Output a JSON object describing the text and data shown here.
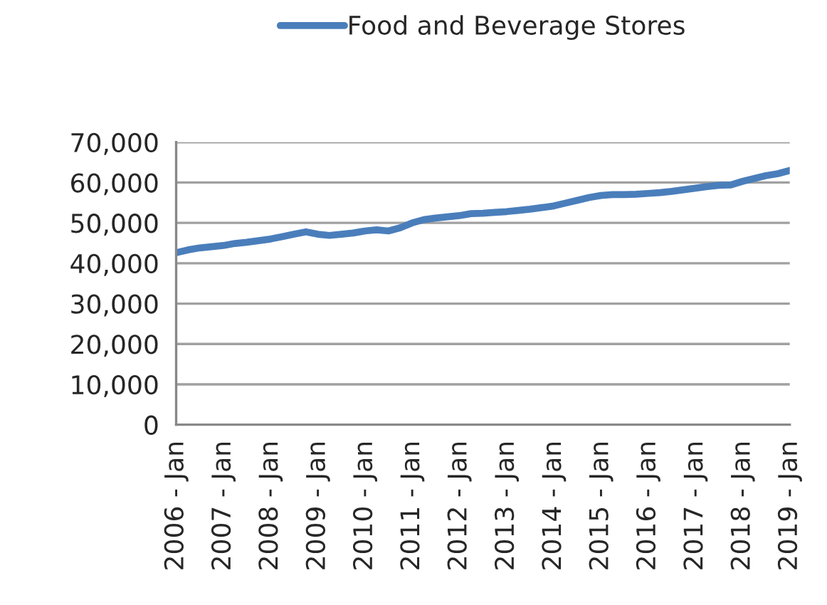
{
  "chart_data": {
    "type": "line",
    "x": [
      "2006-01",
      "2006-04",
      "2006-07",
      "2006-10",
      "2007-01",
      "2007-04",
      "2007-07",
      "2007-10",
      "2008-01",
      "2008-04",
      "2008-07",
      "2008-10",
      "2009-01",
      "2009-04",
      "2009-07",
      "2009-10",
      "2010-01",
      "2010-04",
      "2010-07",
      "2010-10",
      "2011-01",
      "2011-04",
      "2011-07",
      "2011-10",
      "2012-01",
      "2012-04",
      "2012-07",
      "2012-10",
      "2013-01",
      "2013-04",
      "2013-07",
      "2013-10",
      "2014-01",
      "2014-04",
      "2014-07",
      "2014-10",
      "2015-01",
      "2015-04",
      "2015-07",
      "2015-10",
      "2016-01",
      "2016-04",
      "2016-07",
      "2016-10",
      "2017-01",
      "2017-04",
      "2017-07",
      "2017-10",
      "2018-01",
      "2018-04",
      "2018-07",
      "2018-10",
      "2019-01"
    ],
    "series": [
      {
        "name": "Food and Beverage Stores",
        "color": "#4a7ebb",
        "values": [
          42600,
          43300,
          43800,
          44100,
          44400,
          44900,
          45200,
          45600,
          46000,
          46600,
          47200,
          47800,
          47200,
          46900,
          47200,
          47500,
          48000,
          48300,
          48000,
          48800,
          50000,
          50800,
          51200,
          51500,
          51800,
          52300,
          52400,
          52600,
          52800,
          53100,
          53400,
          53800,
          54200,
          54900,
          55600,
          56300,
          56800,
          57000,
          57000,
          57100,
          57300,
          57500,
          57800,
          58200,
          58600,
          59000,
          59300,
          59400,
          60300,
          61000,
          61700,
          62200,
          63000
        ]
      }
    ],
    "xlim": [
      "2006-01",
      "2019-01"
    ],
    "xticks": [
      {
        "value": "2006-01",
        "label": "2006 - Jan"
      },
      {
        "value": "2007-01",
        "label": "2007 - Jan"
      },
      {
        "value": "2008-01",
        "label": "2008 - Jan"
      },
      {
        "value": "2009-01",
        "label": "2009 - Jan"
      },
      {
        "value": "2010-01",
        "label": "2010 - Jan"
      },
      {
        "value": "2011-01",
        "label": "2011 - Jan"
      },
      {
        "value": "2012-01",
        "label": "2012 - Jan"
      },
      {
        "value": "2013-01",
        "label": "2013 - Jan"
      },
      {
        "value": "2014-01",
        "label": "2014 - Jan"
      },
      {
        "value": "2015-01",
        "label": "2015 - Jan"
      },
      {
        "value": "2016-01",
        "label": "2016 - Jan"
      },
      {
        "value": "2017-01",
        "label": "2017 - Jan"
      },
      {
        "value": "2018-01",
        "label": "2018 - Jan"
      },
      {
        "value": "2019-01",
        "label": "2019 - Jan"
      }
    ],
    "ylim": [
      0,
      70000
    ],
    "yticks": [
      {
        "value": 0,
        "label": "0"
      },
      {
        "value": 10000,
        "label": "10,000"
      },
      {
        "value": 20000,
        "label": "20,000"
      },
      {
        "value": 30000,
        "label": "30,000"
      },
      {
        "value": 40000,
        "label": "40,000"
      },
      {
        "value": 50000,
        "label": "50,000"
      },
      {
        "value": 60000,
        "label": "60,000"
      },
      {
        "value": 70000,
        "label": "70,000"
      }
    ],
    "grid": "y",
    "legend": "top",
    "marker": "none",
    "line_style": "solid"
  }
}
